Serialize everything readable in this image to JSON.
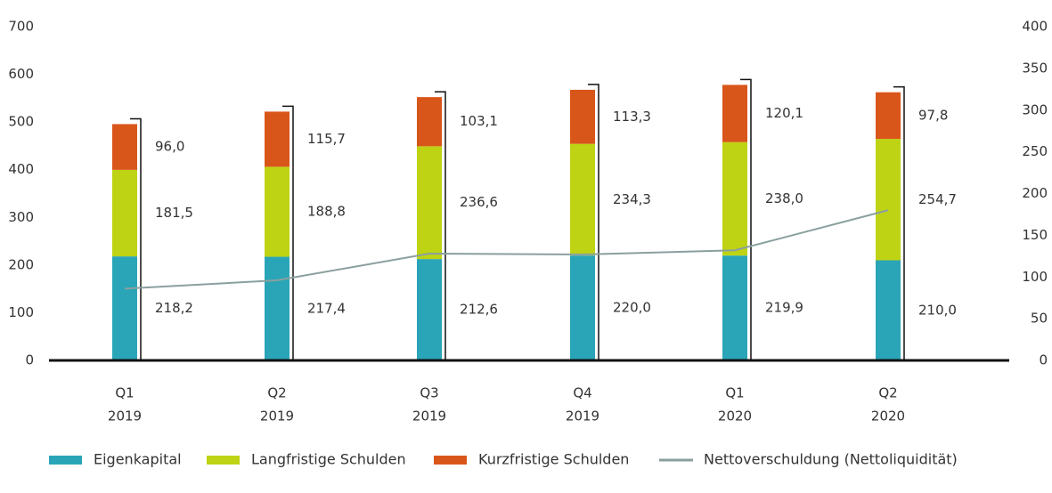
{
  "chart_data": {
    "type": "bar",
    "stacked": true,
    "categories": [
      [
        "Q1",
        "2019"
      ],
      [
        "Q2",
        "2019"
      ],
      [
        "Q3",
        "2019"
      ],
      [
        "Q4",
        "2019"
      ],
      [
        "Q1",
        "2020"
      ],
      [
        "Q2",
        "2020"
      ]
    ],
    "series": [
      {
        "name": "Eigenkapital",
        "color": "#2aa5b8",
        "values": [
          218.2,
          217.4,
          212.6,
          220.0,
          219.9,
          210.0
        ],
        "value_labels": [
          "218,2",
          "217,4",
          "212,6",
          "220,0",
          "219,9",
          "210,0"
        ]
      },
      {
        "name": "Langfristige Schulden",
        "color": "#bed314",
        "values": [
          181.5,
          188.8,
          236.6,
          234.3,
          238.0,
          254.7
        ],
        "value_labels": [
          "181,5",
          "188,8",
          "236,6",
          "234,3",
          "238,0",
          "254,7"
        ]
      },
      {
        "name": "Kurzfristige Schulden",
        "color": "#d9561a",
        "values": [
          96.0,
          115.7,
          103.1,
          113.3,
          120.1,
          97.8
        ],
        "value_labels": [
          "96,0",
          "115,7",
          "103,1",
          "113,3",
          "120,1",
          "97,8"
        ]
      },
      {
        "name": "Nettoverschuldung (Nettoliquidität)",
        "type": "line",
        "axis": "y2",
        "color": "#8aa09e",
        "values": [
          86,
          96,
          128,
          127,
          132,
          180
        ]
      }
    ],
    "ylim": [
      0,
      700
    ],
    "yticks": [
      0,
      100,
      200,
      300,
      400,
      500,
      600,
      700
    ],
    "y2lim": [
      0,
      400
    ],
    "y2ticks": [
      0,
      50,
      100,
      150,
      200,
      250,
      300,
      350,
      400
    ],
    "grid": false,
    "legend": "bottom"
  }
}
